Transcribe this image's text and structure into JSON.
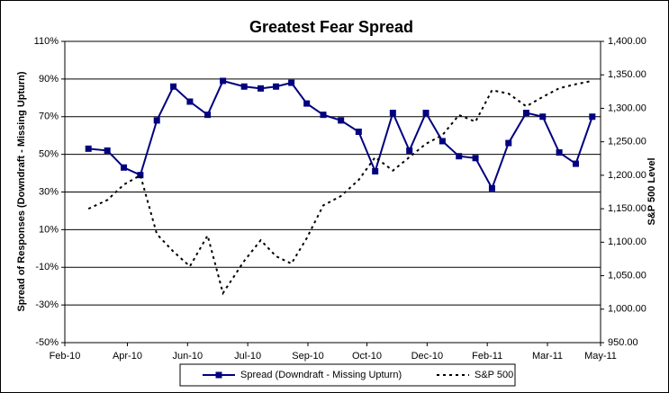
{
  "chart_data": {
    "type": "line",
    "title": "Greatest Fear Spread",
    "y_label": "Spread of Responses (Downdraft - Missing Upturn)",
    "y2_label": "S&P 500 Level",
    "x": [
      40230,
      40246,
      40260,
      40274,
      40288,
      40302,
      40316,
      40331,
      40344,
      40362,
      40376,
      40389,
      40402,
      40415,
      40429,
      40444,
      40459,
      40473,
      40488,
      40502,
      40516,
      40530,
      40544,
      40558,
      40572,
      40586,
      40601,
      40615,
      40629,
      40643,
      40657
    ],
    "series": [
      {
        "name": "Spread (Downdraft - Missing Upturn)",
        "color": "#000080",
        "axis": "y",
        "values": [
          53,
          52,
          43,
          39,
          68,
          86,
          78,
          71,
          89,
          86,
          85,
          86,
          88,
          77,
          71,
          68,
          62,
          41,
          72,
          52,
          72,
          57,
          49,
          48,
          32,
          56,
          72,
          70,
          51,
          45,
          70
        ]
      },
      {
        "name": "S&P 500",
        "color": "#000000",
        "axis": "y2",
        "values": [
          1150,
          1163,
          1186,
          1200,
          1112,
          1086,
          1064,
          1110,
          1024,
          1072,
          1103,
          1079,
          1068,
          1106,
          1155,
          1169,
          1193,
          1227,
          1207,
          1227,
          1247,
          1260,
          1290,
          1280,
          1327,
          1322,
          1303,
          1317,
          1330,
          1336,
          1341
        ]
      }
    ],
    "xlim": [
      40210,
      40664
    ],
    "xticks": [
      {
        "value": 40210,
        "label": "Feb-10"
      },
      {
        "value": 40263,
        "label": "Apr-10"
      },
      {
        "value": 40314,
        "label": "Jun-10"
      },
      {
        "value": 40365,
        "label": "Jul-10"
      },
      {
        "value": 40416,
        "label": "Sep-10"
      },
      {
        "value": 40466,
        "label": "Oct-10"
      },
      {
        "value": 40517,
        "label": "Dec-10"
      },
      {
        "value": 40568,
        "label": "Feb-11"
      },
      {
        "value": 40619,
        "label": "Mar-11"
      },
      {
        "value": 40664,
        "label": "May-11"
      }
    ],
    "ylim": [
      -50,
      110
    ],
    "yticks": [
      {
        "value": -50,
        "label": "-50%"
      },
      {
        "value": -30,
        "label": "-30%"
      },
      {
        "value": -10,
        "label": "-10%"
      },
      {
        "value": 10,
        "label": "10%"
      },
      {
        "value": 30,
        "label": "30%"
      },
      {
        "value": 50,
        "label": "50%"
      },
      {
        "value": 70,
        "label": "70%"
      },
      {
        "value": 90,
        "label": "90%"
      },
      {
        "value": 110,
        "label": "110%"
      }
    ],
    "y2lim": [
      950,
      1400
    ],
    "y2ticks": [
      {
        "value": 950,
        "label": "950.00"
      },
      {
        "value": 1000,
        "label": "1,000.00"
      },
      {
        "value": 1050,
        "label": "1,050.00"
      },
      {
        "value": 1100,
        "label": "1,100.00"
      },
      {
        "value": 1150,
        "label": "1,150.00"
      },
      {
        "value": 1200,
        "label": "1,200.00"
      },
      {
        "value": 1250,
        "label": "1,250.00"
      },
      {
        "value": 1300,
        "label": "1,300.00"
      },
      {
        "value": 1350,
        "label": "1,350.00"
      },
      {
        "value": 1400,
        "label": "1,400.00"
      }
    ],
    "grid": true,
    "legend": "bottom"
  }
}
